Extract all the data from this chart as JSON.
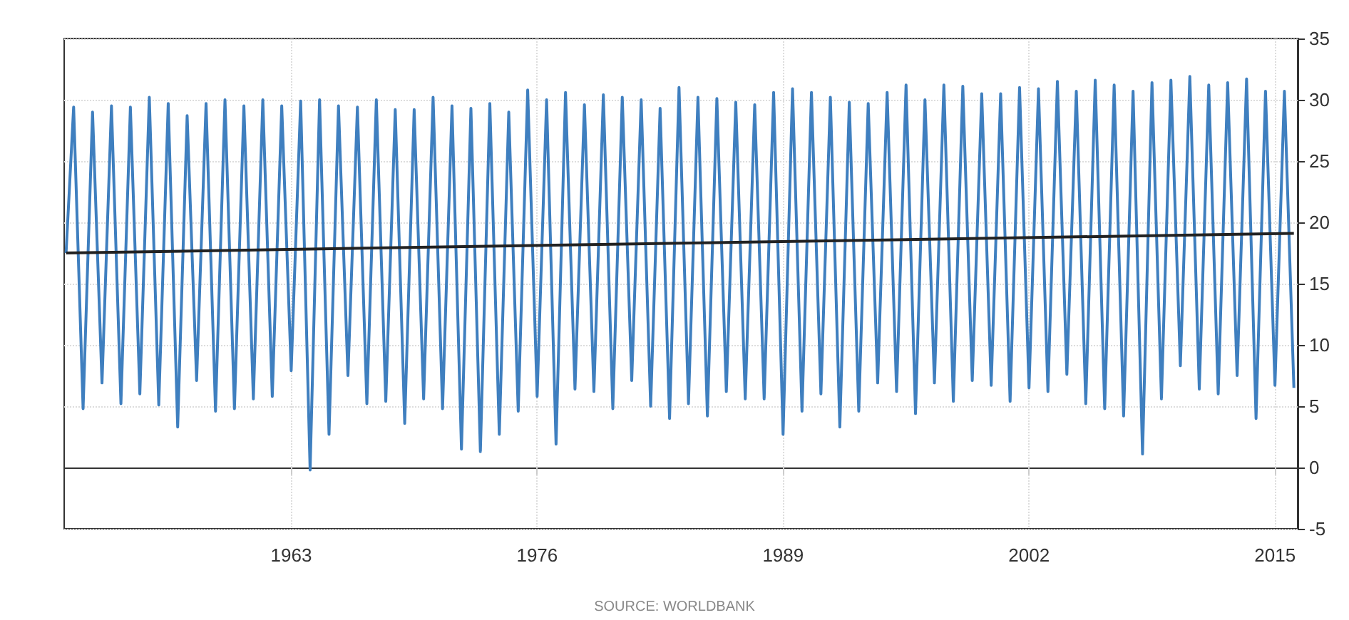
{
  "chart_data": {
    "type": "line",
    "xlim": [
      1951,
      2016.2
    ],
    "xticks": [
      1963,
      1976,
      1989,
      2002,
      2015
    ],
    "ylim": [
      -5,
      35
    ],
    "yticks": [
      -5,
      0,
      5,
      10,
      15,
      20,
      25,
      30,
      35
    ],
    "grid": true,
    "marker": "none",
    "line_style": "solid",
    "annotations": [
      "SOURCE: WORLDBANK"
    ],
    "series": [
      {
        "color": "#3f7fbf",
        "x": [
          1951.1,
          1951.5,
          1952,
          1952.5,
          1953,
          1953.5,
          1954,
          1954.5,
          1955,
          1955.5,
          1956,
          1956.5,
          1957,
          1957.5,
          1958,
          1958.5,
          1959,
          1959.5,
          1960,
          1960.5,
          1961,
          1961.5,
          1962,
          1962.5,
          1963,
          1963.5,
          1964,
          1964.5,
          1965,
          1965.5,
          1966,
          1966.5,
          1967,
          1967.5,
          1968,
          1968.5,
          1969,
          1969.5,
          1970,
          1970.5,
          1971,
          1971.5,
          1972,
          1972.5,
          1973,
          1973.5,
          1974,
          1974.5,
          1975,
          1975.5,
          1976,
          1976.5,
          1977,
          1977.5,
          1978,
          1978.5,
          1979,
          1979.5,
          1980,
          1980.5,
          1981,
          1981.5,
          1982,
          1982.5,
          1983,
          1983.5,
          1984,
          1984.5,
          1985,
          1985.5,
          1986,
          1986.5,
          1987,
          1987.5,
          1988,
          1988.5,
          1989,
          1989.5,
          1990,
          1990.5,
          1991,
          1991.5,
          1992,
          1992.5,
          1993,
          1993.5,
          1994,
          1994.5,
          1995,
          1995.5,
          1996,
          1996.5,
          1997,
          1997.5,
          1998,
          1998.5,
          1999,
          1999.5,
          2000,
          2000.5,
          2001,
          2001.5,
          2002,
          2002.5,
          2003,
          2003.5,
          2004,
          2004.5,
          2005,
          2005.5,
          2006,
          2006.5,
          2007,
          2007.5,
          2008,
          2008.5,
          2009,
          2009.5,
          2010,
          2010.5,
          2011,
          2011.5,
          2012,
          2012.5,
          2013,
          2013.5,
          2014,
          2014.5,
          2015,
          2015.5,
          2016
        ],
        "values": [
          17.5,
          29.4,
          4.8,
          29.0,
          6.9,
          29.5,
          5.2,
          29.4,
          6.0,
          30.2,
          5.1,
          29.7,
          3.3,
          28.7,
          7.1,
          29.7,
          4.6,
          30.0,
          4.8,
          29.5,
          5.6,
          30.0,
          5.8,
          29.5,
          7.9,
          29.9,
          -0.2,
          30.0,
          2.7,
          29.5,
          7.5,
          29.4,
          5.2,
          30.0,
          5.4,
          29.2,
          3.6,
          29.2,
          5.6,
          30.2,
          4.8,
          29.5,
          1.5,
          29.3,
          1.3,
          29.7,
          2.7,
          29.0,
          4.6,
          30.8,
          5.8,
          30.0,
          1.9,
          30.6,
          6.4,
          29.6,
          6.2,
          30.4,
          4.8,
          30.2,
          7.1,
          30.0,
          5.0,
          29.3,
          4.0,
          31.0,
          5.2,
          30.2,
          4.2,
          30.1,
          6.2,
          29.8,
          5.6,
          29.6,
          5.6,
          30.6,
          2.7,
          30.9,
          4.6,
          30.6,
          6.0,
          30.2,
          3.3,
          29.8,
          4.6,
          29.7,
          6.9,
          30.6,
          6.2,
          31.2,
          4.4,
          30.0,
          6.9,
          31.2,
          5.4,
          31.1,
          7.1,
          30.5,
          6.7,
          30.5,
          5.4,
          31.0,
          6.5,
          30.9,
          6.2,
          31.5,
          7.6,
          30.7,
          5.2,
          31.6,
          4.8,
          31.2,
          4.2,
          30.7,
          1.1,
          31.4,
          5.6,
          31.6,
          8.3,
          31.9,
          6.4,
          31.2,
          6.0,
          31.4,
          7.5,
          31.7,
          4.0,
          30.7,
          6.7,
          30.7,
          6.5
        ]
      },
      {
        "type": "line",
        "color": "#222222",
        "x": [
          1951.1,
          2016
        ],
        "values": [
          17.5,
          19.1
        ]
      }
    ]
  }
}
